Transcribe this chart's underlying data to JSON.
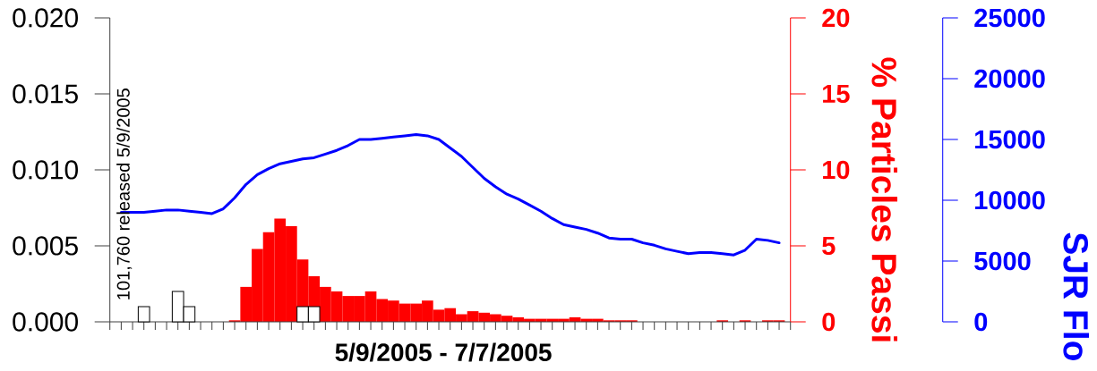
{
  "chart_data": {
    "type": "bar",
    "xlabel": "5/9/2005 - 7/7/2005",
    "y2label": "% Particles Passi",
    "y3label": "SJR Flo",
    "annotations": [
      "101,760 released 5/9/2005"
    ],
    "categories": [
      null,
      null,
      null,
      null,
      null,
      null,
      null,
      null,
      null,
      null,
      null,
      null,
      null,
      null,
      null,
      null,
      null,
      null,
      null,
      null,
      null,
      null,
      null,
      null,
      null,
      null,
      null,
      null,
      null,
      null,
      null,
      null,
      null,
      null,
      null,
      null,
      null,
      null,
      null,
      null,
      null,
      null,
      null,
      null,
      null,
      null,
      null,
      null,
      null,
      null,
      null,
      null,
      null,
      null,
      null,
      null,
      null,
      null,
      null,
      null,
      null
    ],
    "ylim": [
      0,
      0.02
    ],
    "yticks": [
      {
        "value": 0,
        "label": "0.000"
      },
      {
        "value": 0.005,
        "label": "0.005"
      },
      {
        "value": 0.01,
        "label": "0.010"
      },
      {
        "value": 0.015,
        "label": "0.015"
      },
      {
        "value": 0.02,
        "label": "0.020"
      }
    ],
    "y2lim": [
      0,
      20
    ],
    "y2ticks": [
      0,
      5,
      10,
      15,
      20
    ],
    "y3lim": [
      0,
      25000
    ],
    "y3ticks": [
      0,
      5000,
      10000,
      15000,
      20000,
      25000
    ],
    "tick_labels": "y",
    "series": [
      {
        "axis": "y",
        "color": "#ffffff",
        "values": [
          null,
          null,
          null,
          0.001,
          null,
          null,
          0.002,
          0.001,
          null,
          null,
          null,
          null,
          null,
          null,
          null,
          null,
          null,
          0.001,
          0.001,
          null,
          null,
          null,
          null,
          null,
          null,
          null,
          null,
          null,
          null,
          null,
          null,
          null,
          null,
          null,
          null,
          null,
          null,
          null,
          null,
          null,
          null,
          null,
          null,
          null,
          null,
          null,
          null,
          null,
          null,
          null,
          null,
          null,
          null,
          null,
          null,
          null,
          null,
          null,
          null,
          null,
          null
        ]
      },
      {
        "axis": "y2",
        "color": "#ff0000",
        "values": [
          null,
          null,
          null,
          null,
          null,
          null,
          null,
          null,
          null,
          null,
          null,
          0.1,
          2.3,
          4.8,
          5.9,
          6.8,
          6.3,
          4.1,
          3.0,
          2.3,
          2.0,
          1.7,
          1.7,
          2.0,
          1.5,
          1.4,
          1.2,
          1.2,
          1.4,
          0.8,
          0.9,
          0.5,
          0.7,
          0.6,
          0.5,
          0.4,
          0.3,
          0.2,
          0.2,
          0.2,
          0.2,
          0.3,
          0.2,
          0.2,
          0.1,
          0.1,
          0.1,
          null,
          null,
          null,
          null,
          null,
          null,
          null,
          0.1,
          null,
          0.1,
          null,
          0.1,
          0.1,
          null
        ]
      },
      {
        "type": "line",
        "axis": "y3",
        "color": "#0000ff",
        "values": [
          null,
          9000,
          9000,
          9000,
          9100,
          9200,
          9200,
          9100,
          9000,
          8900,
          9300,
          10200,
          11300,
          12100,
          12600,
          13000,
          13200,
          13400,
          13500,
          13800,
          14100,
          14500,
          15000,
          15000,
          15100,
          15200,
          15300,
          15400,
          15300,
          15000,
          14300,
          13600,
          12700,
          11800,
          11100,
          10500,
          10100,
          9600,
          9100,
          8500,
          8000,
          7800,
          7600,
          7300,
          6900,
          6800,
          6800,
          6500,
          6300,
          6000,
          5800,
          5600,
          5700,
          5700,
          5600,
          5500,
          5900,
          6800,
          6700,
          6500,
          null
        ]
      }
    ]
  }
}
